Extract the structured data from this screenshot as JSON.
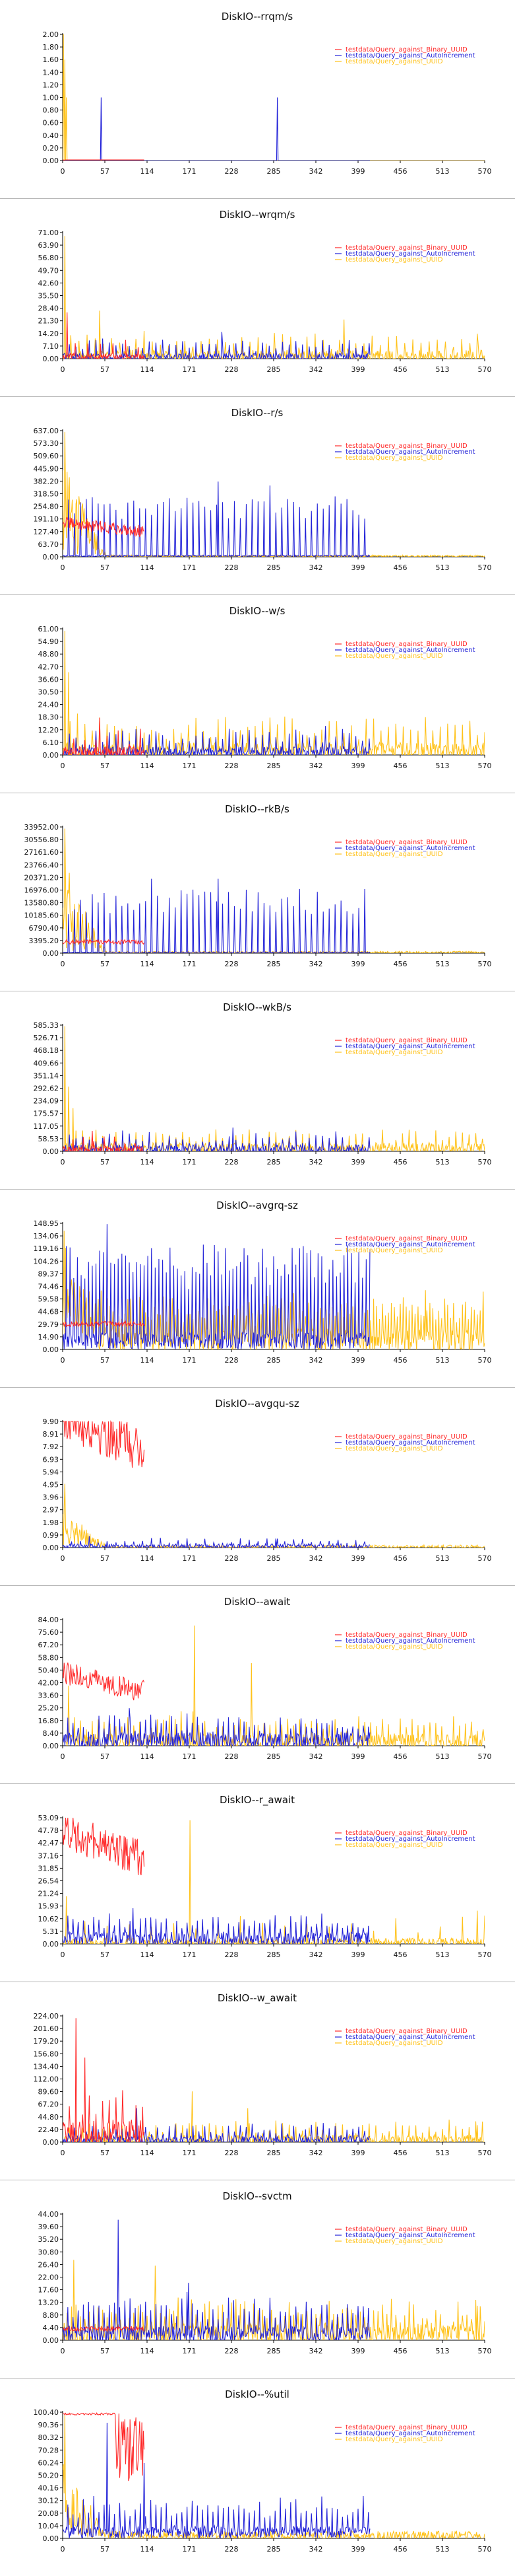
{
  "series_colors": {
    "red": "#ff2a2a",
    "blue": "#2323d8",
    "orange": "#ffc21a"
  },
  "legend_entries": [
    "testdata/Query_against_Binary_UUID",
    "testdata/Query_against_AutoIncrement",
    "testdata/Query_against_UUID"
  ],
  "x_axis": {
    "ticks": [
      "0",
      "57",
      "114",
      "171",
      "228",
      "285",
      "342",
      "399",
      "456",
      "513",
      "570"
    ],
    "range": [
      0,
      570
    ]
  },
  "chart_data": [
    {
      "type": "line",
      "title": "DiskIO--rrqm/s",
      "ylim": [
        0,
        2.0
      ],
      "yticks": [
        "0.00",
        "0.20",
        "0.40",
        "0.60",
        "0.80",
        "1.00",
        "1.20",
        "1.40",
        "1.60",
        "1.80",
        "2.00"
      ],
      "series": [
        {
          "color": "red",
          "end": 110,
          "base": 0.01,
          "noise": 0.0,
          "spike_every": 50,
          "spike_amp": 0.0,
          "extra": [
            [
              2,
              0.0
            ]
          ]
        },
        {
          "color": "blue",
          "end": 415,
          "base": 0.0,
          "noise": 0.0,
          "spike_every": 0,
          "spike_amp": 0.0,
          "extra": [
            [
              52,
              1.0
            ],
            [
              290,
              1.0
            ]
          ]
        },
        {
          "color": "orange",
          "end": 570,
          "base": 0.0,
          "noise": 0.0,
          "spike_every": 0,
          "spike_amp": 0.0,
          "extra": [
            [
              1,
              2.0
            ],
            [
              3,
              1.6
            ],
            [
              5,
              1.0
            ]
          ]
        }
      ]
    },
    {
      "type": "line",
      "title": "DiskIO--wrqm/s",
      "ylim": [
        0,
        71.0
      ],
      "yticks": [
        "0.00",
        "7.10",
        "14.20",
        "21.30",
        "28.40",
        "35.50",
        "42.60",
        "49.70",
        "56.80",
        "63.90",
        "71.00"
      ],
      "series": [
        {
          "color": "red",
          "end": 110,
          "base": 1.0,
          "noise": 2.0,
          "spike_every": 17,
          "spike_amp": 8.0,
          "extra": [
            [
              6,
              26.0
            ]
          ]
        },
        {
          "color": "blue",
          "end": 415,
          "base": 0.5,
          "noise": 2.5,
          "spike_every": 9,
          "spike_amp": 9.0,
          "extra": [
            [
              215,
              15.0
            ]
          ]
        },
        {
          "color": "orange",
          "end": 570,
          "base": 1.0,
          "noise": 4.0,
          "spike_every": 11,
          "spike_amp": 12.0,
          "extra": [
            [
              3,
              69.0
            ],
            [
              50,
              27.0
            ],
            [
              380,
              22.0
            ],
            [
              560,
              14.0
            ]
          ]
        }
      ]
    },
    {
      "type": "line",
      "title": "DiskIO--r/s",
      "ylim": [
        0,
        637.0
      ],
      "yticks": [
        "0.00",
        "63.70",
        "127.40",
        "191.10",
        "254.80",
        "318.50",
        "382.20",
        "445.90",
        "509.60",
        "573.30",
        "637.00"
      ],
      "series": [
        {
          "color": "red",
          "end": 110,
          "base": 150.0,
          "noise": 30.0,
          "spike_every": 0,
          "spike_amp": 0.0,
          "decay": true,
          "extra": []
        },
        {
          "color": "blue",
          "end": 415,
          "base": 5.0,
          "noise": 4.0,
          "spike_every": 8,
          "spike_amp": 300.0,
          "extra": [
            [
              210,
              380.0
            ],
            [
              280,
              360.0
            ]
          ]
        },
        {
          "color": "orange",
          "end": 570,
          "base": 4.0,
          "noise": 5.0,
          "spike_every": 0,
          "spike_amp": 0.0,
          "early_burst": 500.0,
          "extra": [
            [
              3,
              630.0
            ]
          ]
        }
      ]
    },
    {
      "type": "line",
      "title": "DiskIO--w/s",
      "ylim": [
        0,
        61.0
      ],
      "yticks": [
        "0.00",
        "6.10",
        "12.20",
        "18.30",
        "24.40",
        "30.50",
        "36.60",
        "42.70",
        "48.80",
        "54.90",
        "61.00"
      ],
      "series": [
        {
          "color": "red",
          "end": 110,
          "base": 1.0,
          "noise": 3.0,
          "spike_every": 15,
          "spike_amp": 10.0,
          "extra": [
            [
              50,
              18.0
            ]
          ]
        },
        {
          "color": "blue",
          "end": 415,
          "base": 1.0,
          "noise": 3.0,
          "spike_every": 9,
          "spike_amp": 10.0,
          "extra": [
            [
              355,
              14.0
            ]
          ]
        },
        {
          "color": "orange",
          "end": 570,
          "base": 2.0,
          "noise": 4.0,
          "spike_every": 10,
          "spike_amp": 14.0,
          "extra": [
            [
              3,
              60.0
            ],
            [
              8,
              40.0
            ],
            [
              20,
              20.0
            ]
          ]
        }
      ]
    },
    {
      "type": "line",
      "title": "DiskIO--rkB/s",
      "ylim": [
        0,
        33952.0
      ],
      "yticks": [
        "0.00",
        "3395.20",
        "6790.40",
        "10185.60",
        "13580.80",
        "16976.00",
        "20371.20",
        "23766.40",
        "27161.60",
        "30556.80",
        "33952.00"
      ],
      "series": [
        {
          "color": "red",
          "end": 110,
          "base": 3000.0,
          "noise": 600.0,
          "spike_every": 0,
          "spike_amp": 0.0,
          "extra": []
        },
        {
          "color": "blue",
          "end": 415,
          "base": 200.0,
          "noise": 100.0,
          "spike_every": 8,
          "spike_amp": 17000.0,
          "extra": [
            [
              120,
              20000.0
            ],
            [
              210,
              20000.0
            ]
          ]
        },
        {
          "color": "orange",
          "end": 570,
          "base": 200.0,
          "noise": 300.0,
          "spike_every": 0,
          "spike_amp": 0.0,
          "early_burst": 26000.0,
          "extra": [
            [
              3,
              33500.0
            ]
          ]
        }
      ]
    },
    {
      "type": "line",
      "title": "DiskIO--wkB/s",
      "ylim": [
        0,
        585.33
      ],
      "yticks": [
        "0.00",
        "58.53",
        "117.05",
        "175.57",
        "234.09",
        "292.62",
        "351.14",
        "409.66",
        "468.18",
        "526.71",
        "585.33"
      ],
      "series": [
        {
          "color": "red",
          "end": 110,
          "base": 5.0,
          "noise": 20.0,
          "spike_every": 14,
          "spike_amp": 60.0,
          "extra": [
            [
              40,
              95.0
            ]
          ]
        },
        {
          "color": "blue",
          "end": 415,
          "base": 5.0,
          "noise": 25.0,
          "spike_every": 9,
          "spike_amp": 70.0,
          "extra": [
            [
              230,
              110.0
            ]
          ]
        },
        {
          "color": "orange",
          "end": 570,
          "base": 10.0,
          "noise": 30.0,
          "spike_every": 9,
          "spike_amp": 70.0,
          "extra": [
            [
              3,
              580.0
            ],
            [
              8,
              300.0
            ],
            [
              14,
              200.0
            ]
          ]
        }
      ]
    },
    {
      "type": "line",
      "title": "DiskIO--avgrq-sz",
      "ylim": [
        0,
        148.95
      ],
      "yticks": [
        "0.00",
        "14.90",
        "29.79",
        "44.68",
        "59.58",
        "74.46",
        "89.37",
        "104.26",
        "119.16",
        "134.06",
        "148.95"
      ],
      "series": [
        {
          "color": "red",
          "end": 110,
          "base": 30.0,
          "noise": 3.0,
          "spike_every": 0,
          "spike_amp": 0.0,
          "extra": []
        },
        {
          "color": "blue",
          "end": 415,
          "base": 10.0,
          "noise": 10.0,
          "spike_every": 5,
          "spike_amp": 115.0,
          "extra": [
            [
              60,
              148.0
            ]
          ]
        },
        {
          "color": "orange",
          "end": 570,
          "base": 10.0,
          "noise": 15.0,
          "spike_every": 4,
          "spike_amp": 45.0,
          "early_burst": 90.0,
          "extra": [
            [
              2,
              140.0
            ],
            [
              490,
              70.0
            ]
          ]
        }
      ]
    },
    {
      "type": "line",
      "title": "DiskIO--avgqu-sz",
      "ylim": [
        0,
        9.9
      ],
      "yticks": [
        "0.00",
        "0.99",
        "1.98",
        "2.97",
        "3.96",
        "4.95",
        "5.94",
        "6.93",
        "7.92",
        "8.91",
        "9.90"
      ],
      "series": [
        {
          "color": "red",
          "end": 110,
          "base": 9.0,
          "noise": 1.8,
          "spike_every": 0,
          "spike_amp": 0.0,
          "decay": true,
          "extra": []
        },
        {
          "color": "blue",
          "end": 415,
          "base": 0.1,
          "noise": 0.2,
          "spike_every": 12,
          "spike_amp": 0.6,
          "extra": [
            [
              290,
              0.7
            ]
          ]
        },
        {
          "color": "orange",
          "end": 570,
          "base": 0.05,
          "noise": 0.15,
          "spike_every": 0,
          "spike_amp": 0.0,
          "early_burst": 3.0,
          "extra": [
            [
              3,
              5.0
            ]
          ]
        }
      ]
    },
    {
      "type": "line",
      "title": "DiskIO--await",
      "ylim": [
        0,
        84.0
      ],
      "yticks": [
        "0.00",
        "8.40",
        "16.80",
        "25.20",
        "33.60",
        "42.00",
        "50.40",
        "58.80",
        "67.20",
        "75.60",
        "84.00"
      ],
      "series": [
        {
          "color": "red",
          "end": 110,
          "base": 42.0,
          "noise": 8.0,
          "spike_every": 0,
          "spike_amp": 0.0,
          "decay": true,
          "extra": []
        },
        {
          "color": "blue",
          "end": 415,
          "base": 3.0,
          "noise": 6.0,
          "spike_every": 7,
          "spike_amp": 14.0,
          "extra": [
            [
              90,
              25.0
            ]
          ]
        },
        {
          "color": "orange",
          "end": 570,
          "base": 2.0,
          "noise": 6.0,
          "spike_every": 8,
          "spike_amp": 16.0,
          "extra": [
            [
              178,
              80.0
            ],
            [
              255,
              55.0
            ],
            [
              8,
              40.0
            ]
          ]
        }
      ]
    },
    {
      "type": "line",
      "title": "DiskIO--r_await",
      "ylim": [
        0,
        53.09
      ],
      "yticks": [
        "0.00",
        "5.31",
        "10.62",
        "15.93",
        "21.24",
        "26.54",
        "31.85",
        "37.16",
        "42.47",
        "47.78",
        "53.09"
      ],
      "series": [
        {
          "color": "red",
          "end": 110,
          "base": 42.0,
          "noise": 8.0,
          "spike_every": 0,
          "spike_amp": 0.0,
          "decay": true,
          "extra": []
        },
        {
          "color": "blue",
          "end": 415,
          "base": 2.0,
          "noise": 3.0,
          "spike_every": 7,
          "spike_amp": 9.0,
          "extra": [
            [
              95,
              15.0
            ]
          ]
        },
        {
          "color": "orange",
          "end": 570,
          "base": 0.5,
          "noise": 2.0,
          "spike_every": 30,
          "spike_amp": 10.0,
          "extra": [
            [
              172,
              52.0
            ],
            [
              5,
              20.0
            ],
            [
              560,
              14.0
            ]
          ]
        }
      ]
    },
    {
      "type": "line",
      "title": "DiskIO--w_await",
      "ylim": [
        0,
        224.0
      ],
      "yticks": [
        "0.00",
        "22.40",
        "44.80",
        "67.20",
        "89.60",
        "112.00",
        "134.40",
        "156.80",
        "179.20",
        "201.60",
        "224.00"
      ],
      "series": [
        {
          "color": "red",
          "end": 110,
          "base": 15.0,
          "noise": 25.0,
          "spike_every": 9,
          "spike_amp": 60.0,
          "extra": [
            [
              18,
              220.0
            ],
            [
              30,
              150.0
            ]
          ]
        },
        {
          "color": "blue",
          "end": 415,
          "base": 3.0,
          "noise": 8.0,
          "spike_every": 8,
          "spike_amp": 25.0,
          "extra": [
            [
              100,
              60.0
            ]
          ]
        },
        {
          "color": "orange",
          "end": 570,
          "base": 3.0,
          "noise": 10.0,
          "spike_every": 9,
          "spike_amp": 30.0,
          "extra": [
            [
              175,
              90.0
            ],
            [
              250,
              60.0
            ],
            [
              560,
              30.0
            ]
          ]
        }
      ]
    },
    {
      "type": "line",
      "title": "DiskIO--svctm",
      "ylim": [
        0,
        44.0
      ],
      "yticks": [
        "0.00",
        "4.40",
        "8.80",
        "13.20",
        "17.60",
        "22.00",
        "26.40",
        "30.80",
        "35.20",
        "39.60",
        "44.00"
      ],
      "series": [
        {
          "color": "red",
          "end": 110,
          "base": 4.0,
          "noise": 0.8,
          "spike_every": 0,
          "spike_amp": 0.0,
          "extra": []
        },
        {
          "color": "blue",
          "end": 415,
          "base": 2.0,
          "noise": 3.0,
          "spike_every": 7,
          "spike_amp": 12.0,
          "extra": [
            [
              75,
              42.0
            ],
            [
              170,
              20.0
            ]
          ]
        },
        {
          "color": "orange",
          "end": 570,
          "base": 2.0,
          "noise": 4.0,
          "spike_every": 6,
          "spike_amp": 10.0,
          "extra": [
            [
              15,
              28.0
            ],
            [
              125,
              26.0
            ],
            [
              560,
              12.0
            ]
          ]
        }
      ]
    },
    {
      "type": "line",
      "title": "DiskIO--%util",
      "ylim": [
        0,
        100.4
      ],
      "yticks": [
        "0.00",
        "10.04",
        "20.08",
        "30.12",
        "40.16",
        "50.20",
        "60.24",
        "70.28",
        "80.32",
        "90.36",
        "100.40"
      ],
      "series": [
        {
          "color": "red",
          "end": 110,
          "base": 99.0,
          "noise": 0.8,
          "spike_every": 0,
          "spike_amp": 0.0,
          "dips_after": 70,
          "extra": []
        },
        {
          "color": "blue",
          "end": 415,
          "base": 5.0,
          "noise": 5.0,
          "spike_every": 7,
          "spike_amp": 25.0,
          "extra": [
            [
              60,
              92.0
            ],
            [
              110,
              60.0
            ]
          ]
        },
        {
          "color": "orange",
          "end": 570,
          "base": 2.0,
          "noise": 4.0,
          "spike_every": 0,
          "spike_amp": 0.0,
          "early_burst": 60.0,
          "extra": [
            [
              3,
              98.0
            ]
          ]
        }
      ]
    }
  ]
}
